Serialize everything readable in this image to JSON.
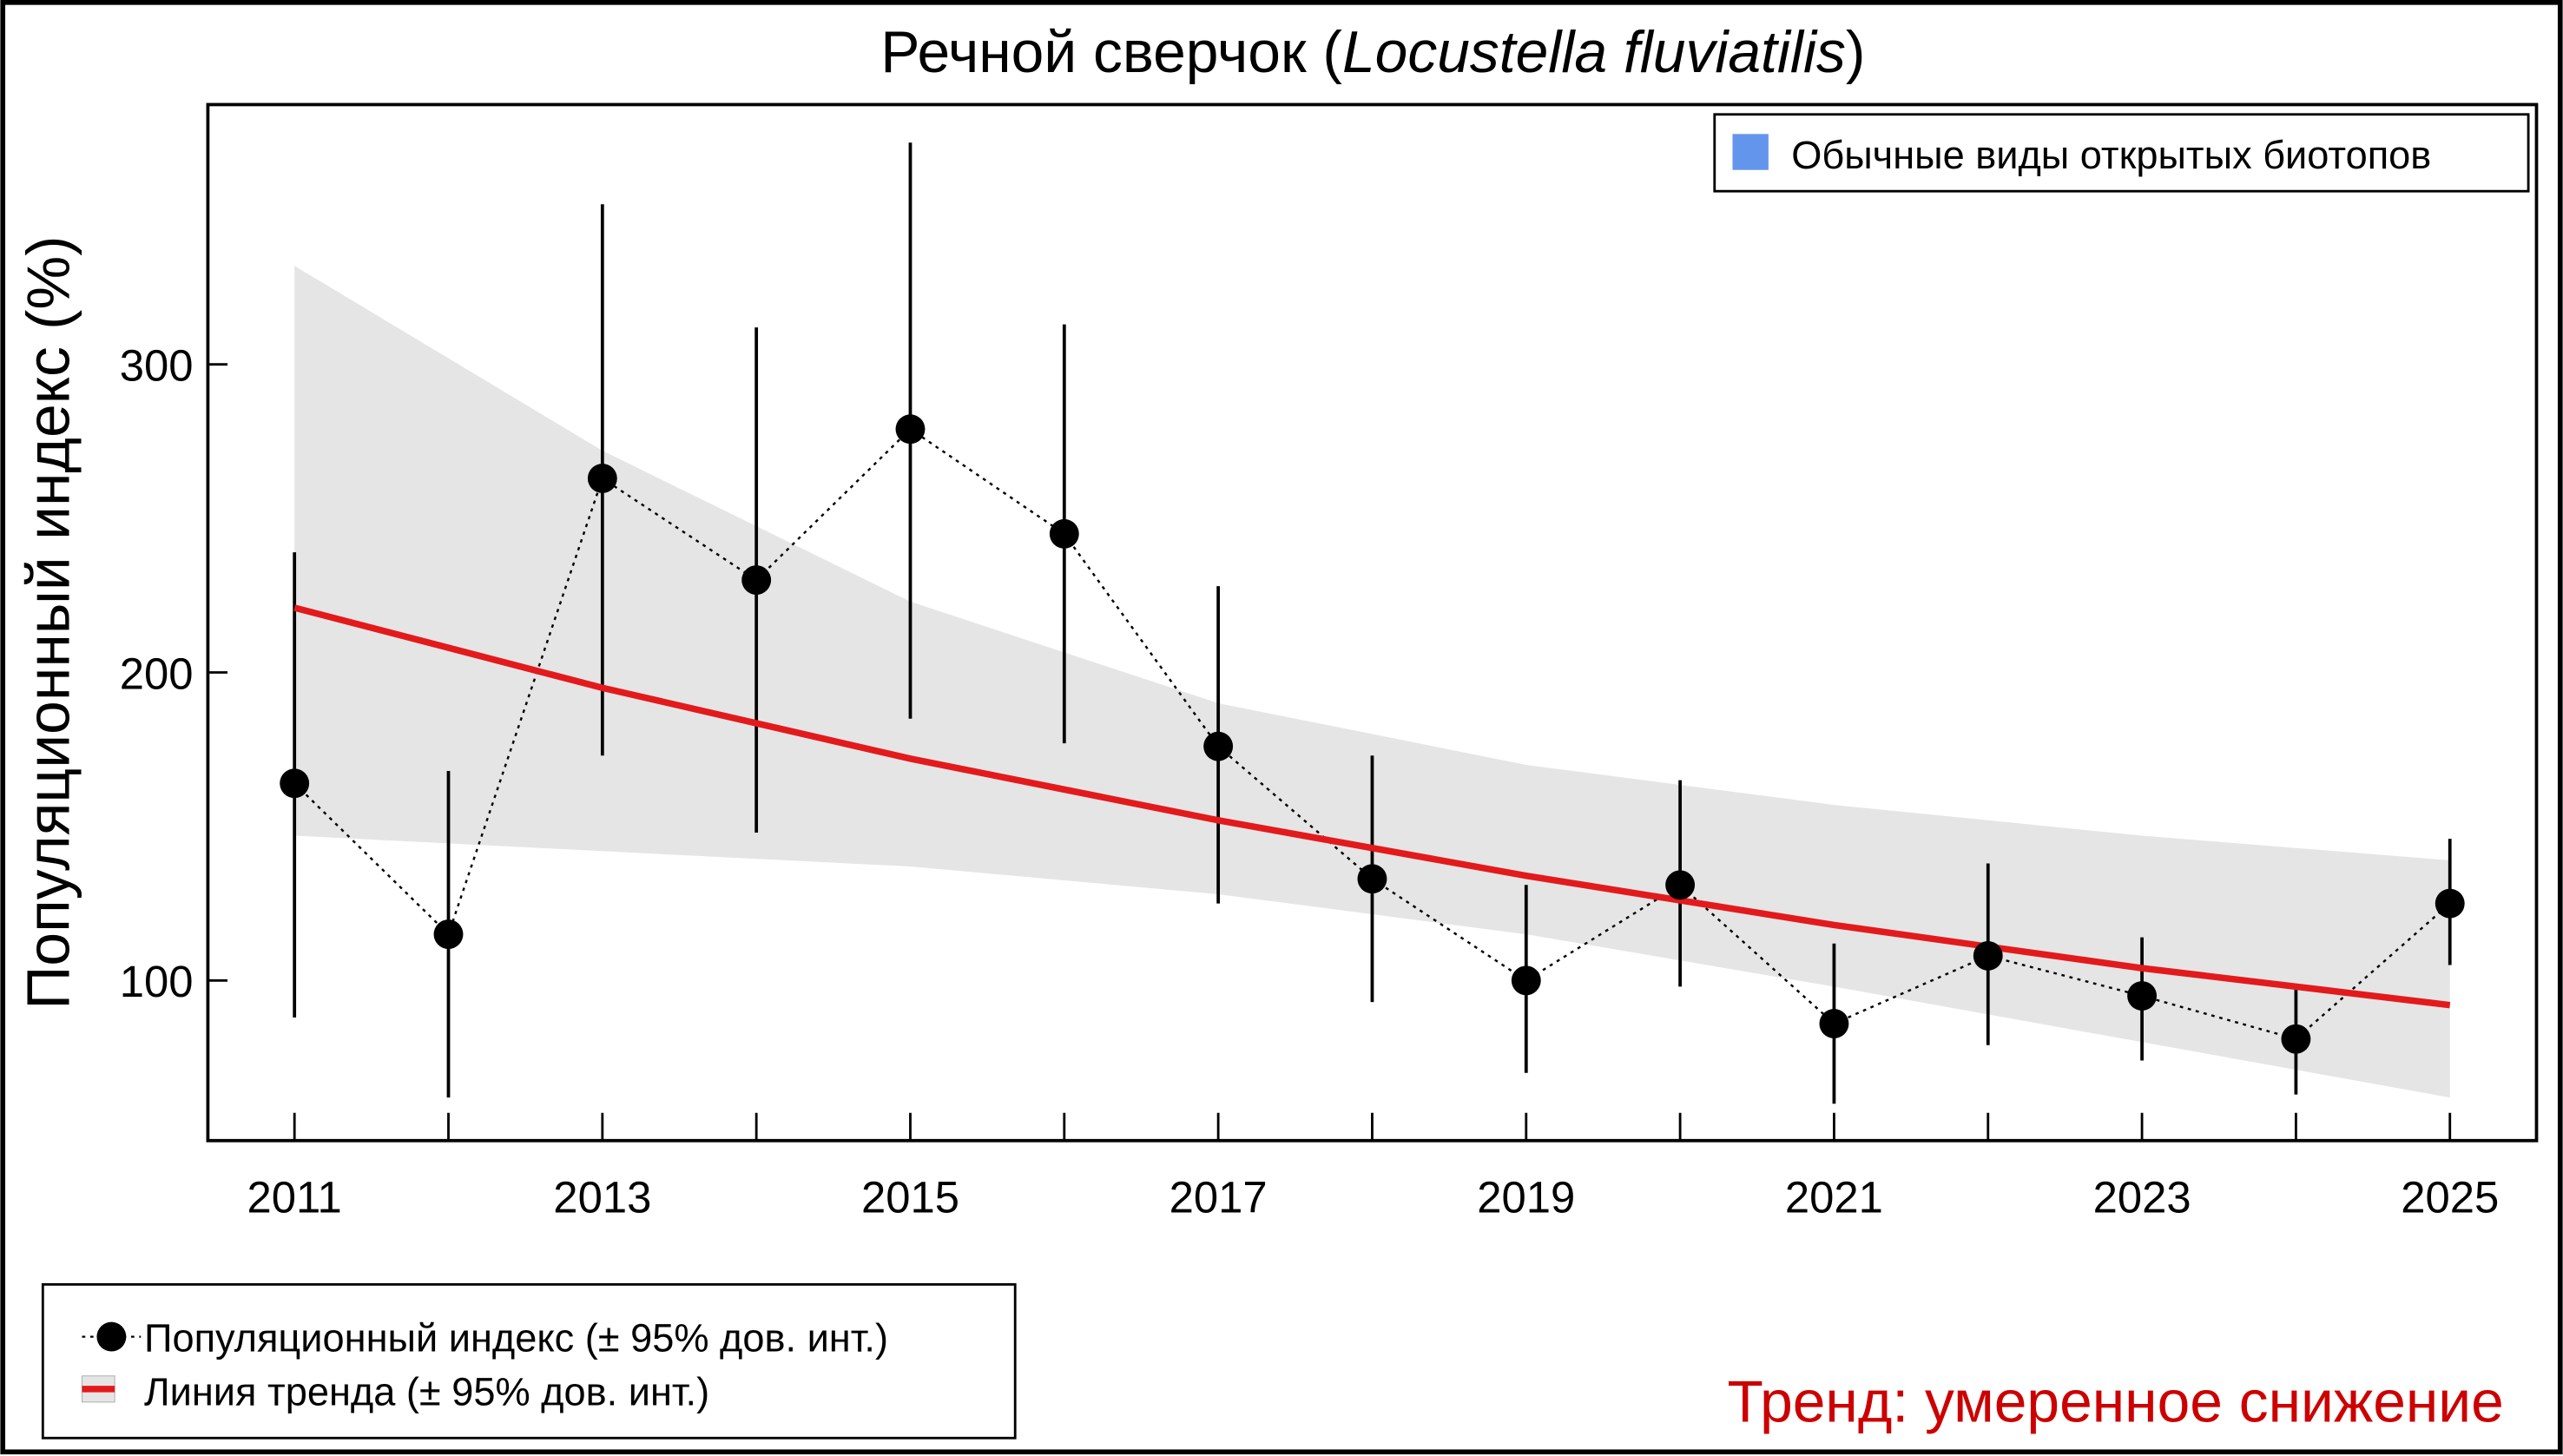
{
  "chart_data": {
    "type": "line",
    "title": "Речной сверчок",
    "title_italic": "Locustella fluviatilis",
    "xlabel": "",
    "ylabel": "Популяционный индекс (%)",
    "xlim": [
      2011,
      2025
    ],
    "ylim": [
      48,
      384
    ],
    "grid": false,
    "x_ticks": [
      2011,
      2012,
      2013,
      2014,
      2015,
      2016,
      2017,
      2018,
      2019,
      2020,
      2021,
      2022,
      2023,
      2024,
      2025
    ],
    "x_tick_labels": [
      "2011",
      "2013",
      "2015",
      "2017",
      "2019",
      "2021",
      "2023",
      "2025"
    ],
    "y_ticks": [
      100,
      200,
      300
    ],
    "y_tick_labels": [
      "100",
      "200",
      "300"
    ],
    "series": [
      {
        "name": "Популяционный индекс (± 95% дов. инт.)",
        "style": "points-dotted-line",
        "color": "#000000",
        "x": [
          2011,
          2012,
          2013,
          2014,
          2015,
          2016,
          2017,
          2018,
          2019,
          2020,
          2021,
          2022,
          2023,
          2024,
          2025
        ],
        "values": [
          164,
          115,
          263,
          230,
          279,
          245,
          176,
          133,
          100,
          131,
          86,
          108,
          95,
          81,
          125
        ],
        "ci_upper": [
          239,
          168,
          352,
          312,
          372,
          313,
          228,
          173,
          131,
          165,
          112,
          138,
          114,
          98,
          146
        ],
        "ci_lower": [
          88,
          62,
          173,
          148,
          185,
          177,
          125,
          93,
          70,
          98,
          60,
          79,
          74,
          63,
          105
        ]
      },
      {
        "name": "Линия тренда (± 95% дов. инт.)",
        "style": "line-with-band",
        "color": "#E31A1C",
        "band_color": "#E5E5E5",
        "x": [
          2011,
          2013,
          2015,
          2017,
          2019,
          2021,
          2023,
          2025
        ],
        "values": [
          221,
          195,
          172,
          152,
          134,
          118,
          104,
          92
        ],
        "band_upper": [
          332,
          272,
          223,
          190,
          170,
          157,
          147,
          139
        ],
        "band_lower": [
          147,
          142,
          137,
          128,
          115,
          98,
          80,
          62
        ]
      }
    ],
    "group_legend": {
      "label": "Обычные виды открытых биотопов",
      "color": "#6495ED",
      "position": "top-right"
    },
    "series_legend_position": "bottom-left",
    "annotation": {
      "text": "Тренд: умеренное снижение",
      "color": "#CC0000"
    }
  }
}
